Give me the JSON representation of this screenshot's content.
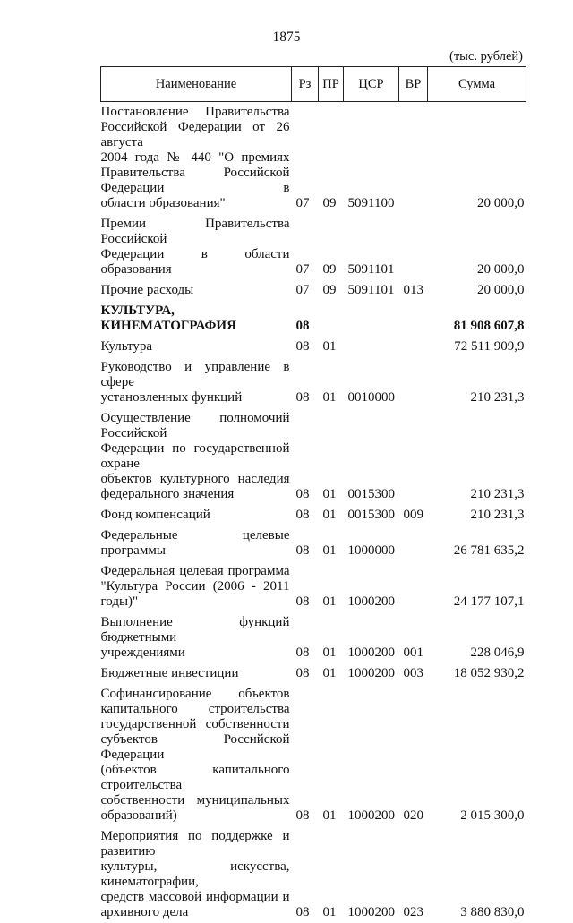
{
  "page_number": "1875",
  "units": "(тыс. рублей)",
  "columns": [
    "Наименование",
    "Рз",
    "ПР",
    "ЦСР",
    "ВР",
    "Сумма"
  ],
  "rows": [
    {
      "lines": [
        "Постановление Правительства",
        "Российской Федерации от 26 августа",
        "2004 года № 440 \"О премиях",
        "Правительства Российской Федерации в",
        "области образования\""
      ],
      "rz": "07",
      "pr": "09",
      "csr": "5091100",
      "vr": "",
      "sum": "20 000,0"
    },
    {
      "lines": [
        "Премии Правительства Российской",
        "Федерации в области образования"
      ],
      "rz": "07",
      "pr": "09",
      "csr": "5091101",
      "vr": "",
      "sum": "20 000,0"
    },
    {
      "lines": [
        "Прочие расходы"
      ],
      "rz": "07",
      "pr": "09",
      "csr": "5091101",
      "vr": "013",
      "sum": "20 000,0"
    },
    {
      "lines": [
        "КУЛЬТУРА, КИНЕМАТОГРАФИЯ"
      ],
      "rz": "08",
      "pr": "",
      "csr": "",
      "vr": "",
      "sum": "81 908 607,8",
      "bold": true
    },
    {
      "lines": [
        "Культура"
      ],
      "rz": "08",
      "pr": "01",
      "csr": "",
      "vr": "",
      "sum": "72 511 909,9"
    },
    {
      "lines": [
        "Руководство и управление в сфере",
        "установленных функций"
      ],
      "rz": "08",
      "pr": "01",
      "csr": "0010000",
      "vr": "",
      "sum": "210 231,3"
    },
    {
      "lines": [
        "Осуществление полномочий Российской",
        "Федерации по государственной охране",
        "объектов культурного наследия",
        "федерального значения"
      ],
      "rz": "08",
      "pr": "01",
      "csr": "0015300",
      "vr": "",
      "sum": "210 231,3"
    },
    {
      "lines": [
        "Фонд компенсаций"
      ],
      "rz": "08",
      "pr": "01",
      "csr": "0015300",
      "vr": "009",
      "sum": "210 231,3"
    },
    {
      "lines": [
        "Федеральные целевые программы"
      ],
      "rz": "08",
      "pr": "01",
      "csr": "1000000",
      "vr": "",
      "sum": "26 781 635,2"
    },
    {
      "lines": [
        "Федеральная целевая программа",
        "\"Культура России (2006 - 2011 годы)\""
      ],
      "rz": "08",
      "pr": "01",
      "csr": "1000200",
      "vr": "",
      "sum": "24 177 107,1"
    },
    {
      "lines": [
        "Выполнение функций бюджетными",
        "учреждениями"
      ],
      "rz": "08",
      "pr": "01",
      "csr": "1000200",
      "vr": "001",
      "sum": "228 046,9"
    },
    {
      "lines": [
        "Бюджетные инвестиции"
      ],
      "rz": "08",
      "pr": "01",
      "csr": "1000200",
      "vr": "003",
      "sum": "18 052 930,2"
    },
    {
      "lines": [
        "Софинансирование объектов",
        "капитального строительства",
        "государственной собственности",
        "субъектов Российской Федерации",
        "(объектов капитального строительства",
        "собственности муниципальных",
        "образований)"
      ],
      "rz": "08",
      "pr": "01",
      "csr": "1000200",
      "vr": "020",
      "sum": "2 015 300,0"
    },
    {
      "lines": [
        "Мероприятия по поддержке и развитию",
        "культуры, искусства, кинематографии,",
        "средств массовой информации и",
        "архивного дела"
      ],
      "rz": "08",
      "pr": "01",
      "csr": "1000200",
      "vr": "023",
      "sum": "3 880 830,0"
    }
  ]
}
